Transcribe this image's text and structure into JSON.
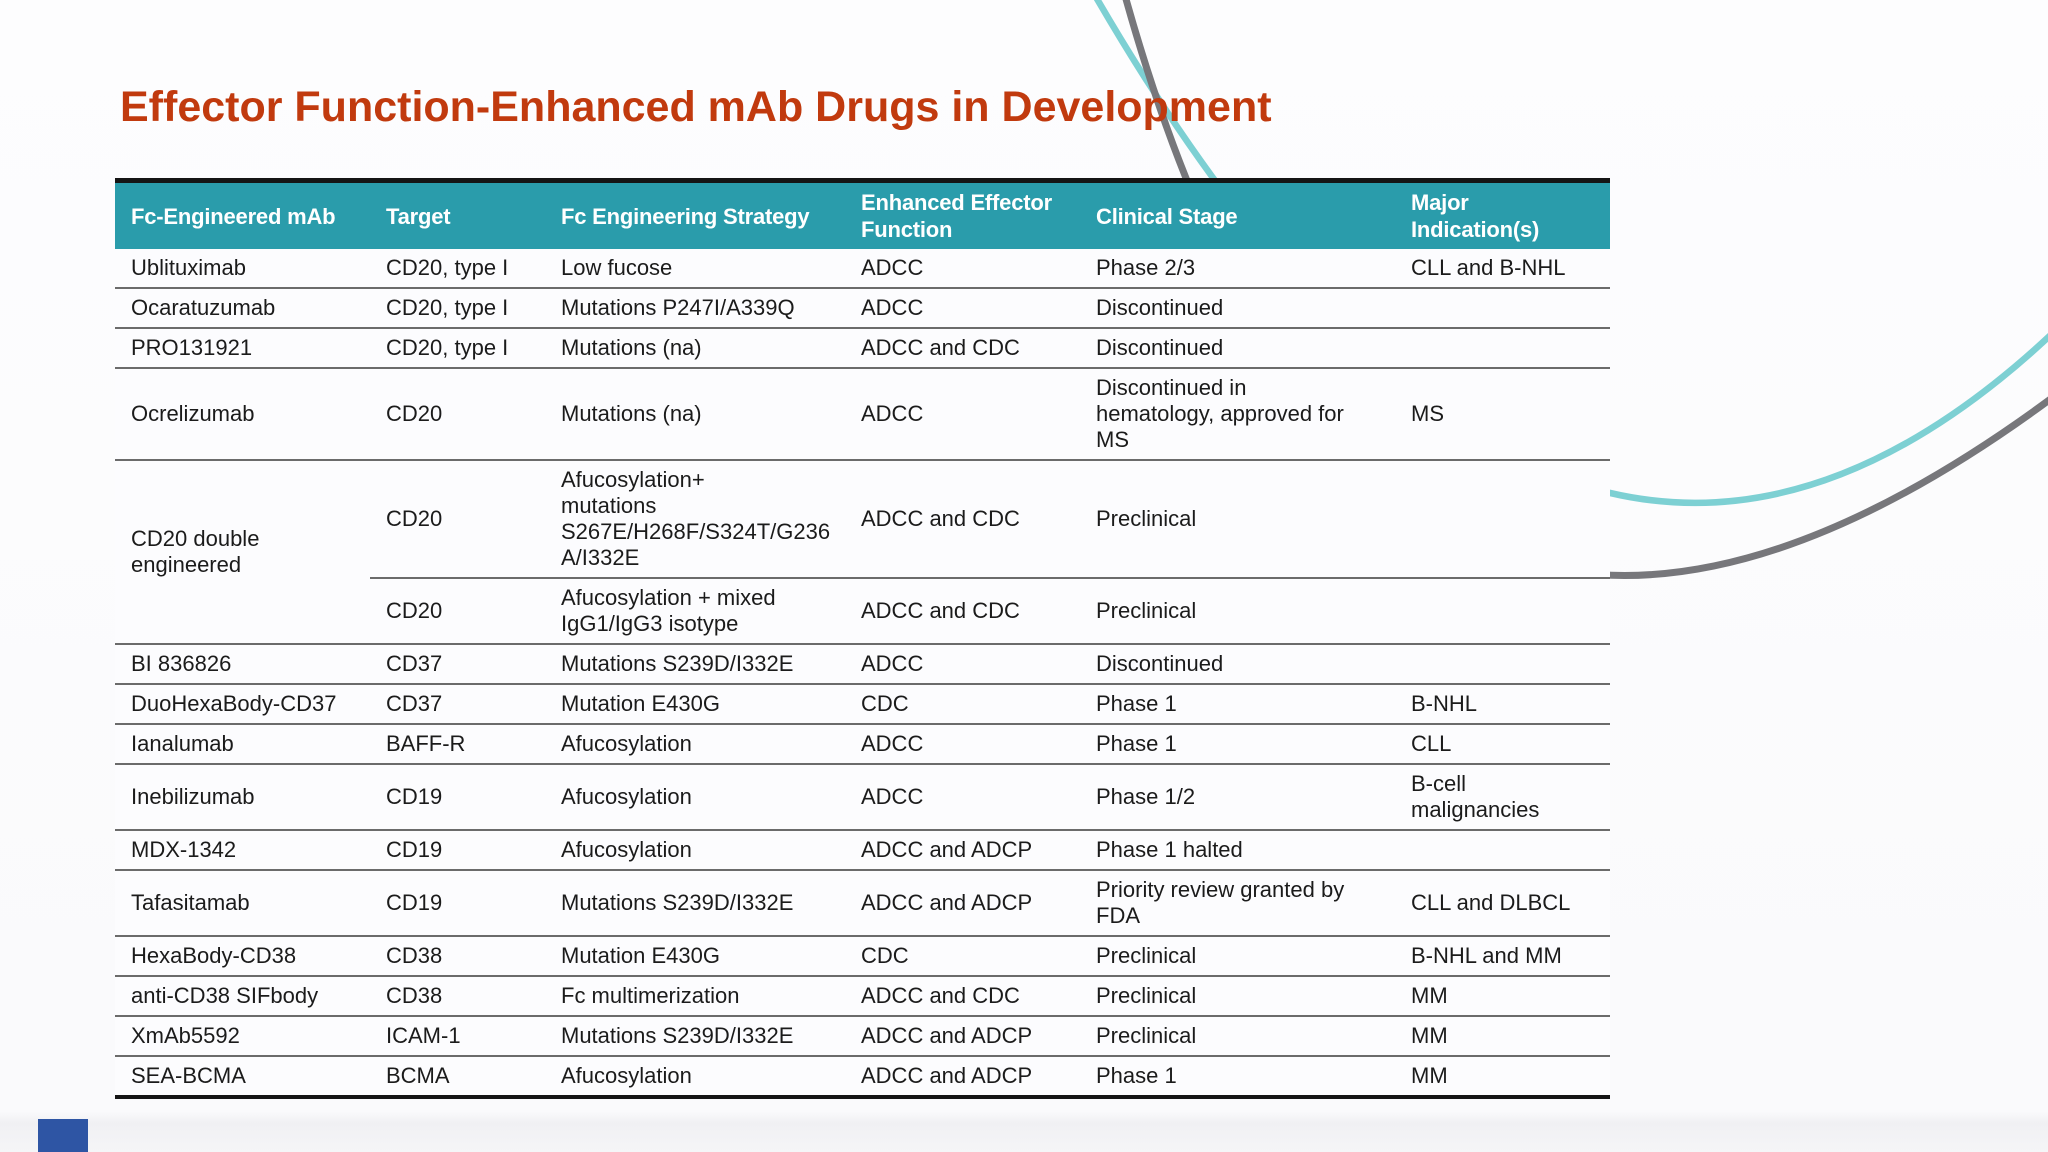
{
  "slide": {
    "title": "Effector Function-Enhanced mAb Drugs in Development"
  },
  "table": {
    "columns": [
      "Fc-Engineered mAb",
      "Target",
      "Fc Engineering Strategy",
      "Enhanced Effector\nFunction",
      "Clinical Stage",
      "Major\nIndication(s)"
    ],
    "rowspan": {
      "row": 4,
      "cell": 0,
      "span": 2
    },
    "rows": [
      {
        "cells": [
          "Ublituximab",
          "CD20, type I",
          "Low fucose",
          "ADCC",
          "Phase 2/3",
          "CLL and B-NHL"
        ]
      },
      {
        "cells": [
          "Ocaratuzumab",
          "CD20, type I",
          "Mutations P247I/A339Q",
          "ADCC",
          "Discontinued",
          ""
        ]
      },
      {
        "cells": [
          "PRO131921",
          "CD20, type I",
          "Mutations (na)",
          "ADCC and CDC",
          "Discontinued",
          ""
        ]
      },
      {
        "cells": [
          "Ocrelizumab",
          "CD20",
          "Mutations (na)",
          "ADCC",
          "Discontinued in\nhematology, approved for\nMS",
          "MS"
        ]
      },
      {
        "cells": [
          "CD20 double\nengineered",
          "CD20",
          "Afucosylation+\nmutations\nS267E/H268F/S324T/G236A/I332E",
          "ADCC and CDC",
          "Preclinical",
          ""
        ]
      },
      {
        "cells": [
          null,
          "CD20",
          "Afucosylation + mixed\nIgG1/IgG3 isotype",
          "ADCC and CDC",
          "Preclinical",
          ""
        ]
      },
      {
        "cells": [
          "BI 836826",
          "CD37",
          "Mutations S239D/I332E",
          "ADCC",
          "Discontinued",
          ""
        ]
      },
      {
        "cells": [
          "DuoHexaBody-CD37",
          "CD37",
          "Mutation E430G",
          "CDC",
          "Phase 1",
          "B-NHL"
        ]
      },
      {
        "cells": [
          "Ianalumab",
          "BAFF-R",
          "Afucosylation",
          "ADCC",
          "Phase 1",
          "CLL"
        ]
      },
      {
        "cells": [
          "Inebilizumab",
          "CD19",
          "Afucosylation",
          "ADCC",
          "Phase 1/2",
          "B-cell\nmalignancies"
        ]
      },
      {
        "cells": [
          "MDX-1342",
          "CD19",
          "Afucosylation",
          "ADCC and ADCP",
          "Phase 1 halted",
          ""
        ]
      },
      {
        "cells": [
          "Tafasitamab",
          "CD19",
          "Mutations S239D/I332E",
          "ADCC and ADCP",
          "Priority review granted by\nFDA",
          "CLL and DLBCL"
        ]
      },
      {
        "cells": [
          "HexaBody-CD38",
          "CD38",
          "Mutation E430G",
          "CDC",
          "Preclinical",
          "B-NHL and MM"
        ]
      },
      {
        "cells": [
          "anti-CD38 SIFbody",
          "CD38",
          "Fc multimerization",
          "ADCC and CDC",
          "Preclinical",
          "MM"
        ]
      },
      {
        "cells": [
          "XmAb5592",
          "ICAM-1",
          "Mutations S239D/I332E",
          "ADCC and ADCP",
          "Preclinical",
          "MM"
        ]
      },
      {
        "cells": [
          "SEA-BCMA",
          "BCMA",
          "Afucosylation",
          "ADCC and ADCP",
          "Phase 1",
          "MM"
        ]
      }
    ]
  },
  "colors": {
    "title_color": "#c13a0e",
    "header_bg": "#2a9cab",
    "header_text": "#ffffff",
    "body_text": "#1b1b1b",
    "row_bg": "#fcfcfe",
    "row_line": "#6b6b6b",
    "table_border": "#151515",
    "accent_teal": "#7dd0d3",
    "accent_gray": "#77777b",
    "corner_square": "#2e55a4"
  }
}
